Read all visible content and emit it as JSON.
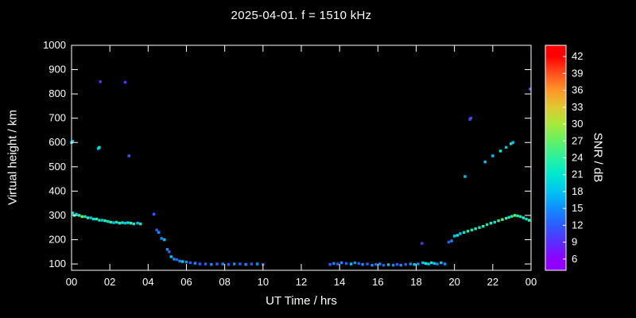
{
  "title": "2025-04-01. f = 1510 kHz",
  "labels": {
    "xlabel": "UT Time / hrs",
    "ylabel": "Virtual height / km",
    "colorbar_label": "SNR / dB"
  },
  "chart_data": {
    "type": "scatter",
    "title": "2025-04-01. f = 1510 kHz",
    "xlabel": "UT Time / hrs",
    "ylabel": "Virtual height / km",
    "colorbar_label": "SNR / dB",
    "xlim": [
      0,
      24
    ],
    "ylim": [
      74,
      1000
    ],
    "grid": false,
    "background_color": "#000000",
    "axis_color": "#ffffff",
    "x_ticks": [
      0,
      2,
      4,
      6,
      8,
      10,
      12,
      14,
      16,
      18,
      20,
      22,
      24
    ],
    "x_tick_labels": [
      "00",
      "02",
      "04",
      "06",
      "08",
      "10",
      "12",
      "14",
      "16",
      "18",
      "20",
      "22",
      "00"
    ],
    "y_ticks": [
      100,
      200,
      300,
      400,
      500,
      600,
      700,
      800,
      900,
      1000
    ],
    "y_tick_labels": [
      "100",
      "200",
      "300",
      "400",
      "500",
      "600",
      "700",
      "800",
      "900",
      "1000"
    ],
    "colorbar_range": [
      4,
      44
    ],
    "colorbar_ticks": [
      6,
      9,
      12,
      15,
      18,
      21,
      24,
      27,
      30,
      33,
      36,
      39,
      42
    ],
    "colormap": [
      {
        "v": 6,
        "c": "#8f00ff"
      },
      {
        "v": 9,
        "c": "#5a2eff"
      },
      {
        "v": 12,
        "c": "#2e5bff"
      },
      {
        "v": 15,
        "c": "#0f8dff"
      },
      {
        "v": 18,
        "c": "#00c3f0"
      },
      {
        "v": 21,
        "c": "#00e8d0"
      },
      {
        "v": 24,
        "c": "#2af0a0"
      },
      {
        "v": 27,
        "c": "#64f064"
      },
      {
        "v": 30,
        "c": "#a8e83c"
      },
      {
        "v": 33,
        "c": "#e0c832"
      },
      {
        "v": 36,
        "c": "#ff9628"
      },
      {
        "v": 39,
        "c": "#ff501e"
      },
      {
        "v": 42,
        "c": "#ff0000"
      }
    ],
    "points": [
      [
        0.0,
        600,
        21
      ],
      [
        0.05,
        605,
        18
      ],
      [
        0.05,
        310,
        21
      ],
      [
        0.15,
        300,
        24
      ],
      [
        0.25,
        305,
        18
      ],
      [
        0.4,
        300,
        24
      ],
      [
        0.55,
        295,
        27
      ],
      [
        0.7,
        295,
        21
      ],
      [
        0.85,
        290,
        24
      ],
      [
        1.0,
        290,
        18
      ],
      [
        1.15,
        285,
        21
      ],
      [
        1.3,
        285,
        24
      ],
      [
        1.4,
        575,
        18
      ],
      [
        1.45,
        580,
        21
      ],
      [
        1.5,
        850,
        9
      ],
      [
        1.45,
        280,
        21
      ],
      [
        1.6,
        280,
        18
      ],
      [
        1.75,
        278,
        24
      ],
      [
        1.9,
        275,
        21
      ],
      [
        2.05,
        272,
        24
      ],
      [
        2.2,
        270,
        18
      ],
      [
        2.35,
        272,
        21
      ],
      [
        2.5,
        268,
        24
      ],
      [
        2.65,
        270,
        21
      ],
      [
        2.8,
        848,
        9
      ],
      [
        3.0,
        545,
        12
      ],
      [
        2.8,
        268,
        18
      ],
      [
        2.95,
        270,
        21
      ],
      [
        3.1,
        268,
        24
      ],
      [
        3.25,
        265,
        21
      ],
      [
        3.45,
        268,
        18
      ],
      [
        3.6,
        265,
        21
      ],
      [
        4.3,
        305,
        12
      ],
      [
        4.45,
        240,
        12
      ],
      [
        4.55,
        230,
        15
      ],
      [
        4.7,
        205,
        15
      ],
      [
        4.85,
        200,
        18
      ],
      [
        5.0,
        160,
        15
      ],
      [
        5.1,
        150,
        12
      ],
      [
        5.2,
        130,
        18
      ],
      [
        5.35,
        120,
        15
      ],
      [
        5.5,
        118,
        12
      ],
      [
        5.65,
        112,
        15
      ],
      [
        5.8,
        110,
        18
      ],
      [
        6.0,
        108,
        15
      ],
      [
        6.2,
        105,
        12
      ],
      [
        6.45,
        103,
        15
      ],
      [
        6.7,
        100,
        12
      ],
      [
        7.0,
        100,
        12
      ],
      [
        7.3,
        98,
        15
      ],
      [
        7.6,
        100,
        12
      ],
      [
        7.9,
        100,
        15
      ],
      [
        8.2,
        98,
        12
      ],
      [
        8.5,
        100,
        15
      ],
      [
        8.8,
        100,
        12
      ],
      [
        9.1,
        98,
        15
      ],
      [
        9.4,
        100,
        12
      ],
      [
        9.7,
        100,
        15
      ],
      [
        10.0,
        98,
        12
      ],
      [
        13.5,
        98,
        12
      ],
      [
        13.7,
        102,
        15
      ],
      [
        13.9,
        100,
        12
      ],
      [
        14.1,
        105,
        15
      ],
      [
        14.35,
        102,
        12
      ],
      [
        14.6,
        100,
        18
      ],
      [
        14.8,
        105,
        15
      ],
      [
        15.0,
        102,
        12
      ],
      [
        15.2,
        98,
        15
      ],
      [
        15.45,
        100,
        12
      ],
      [
        15.7,
        95,
        15
      ],
      [
        15.9,
        98,
        12
      ],
      [
        16.1,
        100,
        15
      ],
      [
        16.3,
        95,
        12
      ],
      [
        16.55,
        97,
        18
      ],
      [
        16.8,
        95,
        15
      ],
      [
        17.0,
        98,
        12
      ],
      [
        17.2,
        95,
        15
      ],
      [
        17.45,
        98,
        12
      ],
      [
        17.7,
        100,
        15
      ],
      [
        17.9,
        98,
        18
      ],
      [
        18.1,
        100,
        15
      ],
      [
        18.3,
        185,
        9
      ],
      [
        18.35,
        105,
        18
      ],
      [
        18.5,
        102,
        21
      ],
      [
        18.65,
        100,
        18
      ],
      [
        18.8,
        105,
        21
      ],
      [
        18.95,
        102,
        18
      ],
      [
        19.1,
        100,
        15
      ],
      [
        19.3,
        105,
        18
      ],
      [
        19.5,
        100,
        15
      ],
      [
        19.7,
        190,
        12
      ],
      [
        19.85,
        195,
        15
      ],
      [
        20.0,
        215,
        18
      ],
      [
        20.15,
        218,
        21
      ],
      [
        20.3,
        225,
        18
      ],
      [
        20.5,
        230,
        21
      ],
      [
        20.7,
        235,
        24
      ],
      [
        20.9,
        240,
        21
      ],
      [
        21.1,
        245,
        24
      ],
      [
        21.3,
        250,
        21
      ],
      [
        21.5,
        255,
        24
      ],
      [
        21.7,
        262,
        21
      ],
      [
        21.9,
        268,
        24
      ],
      [
        22.1,
        272,
        21
      ],
      [
        22.3,
        278,
        24
      ],
      [
        22.5,
        283,
        27
      ],
      [
        22.7,
        288,
        24
      ],
      [
        22.85,
        292,
        21
      ],
      [
        23.0,
        296,
        24
      ],
      [
        23.15,
        300,
        27
      ],
      [
        23.3,
        298,
        24
      ],
      [
        23.45,
        295,
        21
      ],
      [
        23.6,
        290,
        24
      ],
      [
        23.75,
        285,
        21
      ],
      [
        23.9,
        280,
        24
      ],
      [
        20.55,
        460,
        18
      ],
      [
        20.8,
        695,
        9
      ],
      [
        20.85,
        700,
        12
      ],
      [
        21.6,
        520,
        18
      ],
      [
        22.0,
        545,
        18
      ],
      [
        22.4,
        565,
        21
      ],
      [
        22.7,
        580,
        18
      ],
      [
        22.95,
        595,
        21
      ],
      [
        23.05,
        600,
        18
      ],
      [
        23.95,
        820,
        12
      ]
    ]
  }
}
